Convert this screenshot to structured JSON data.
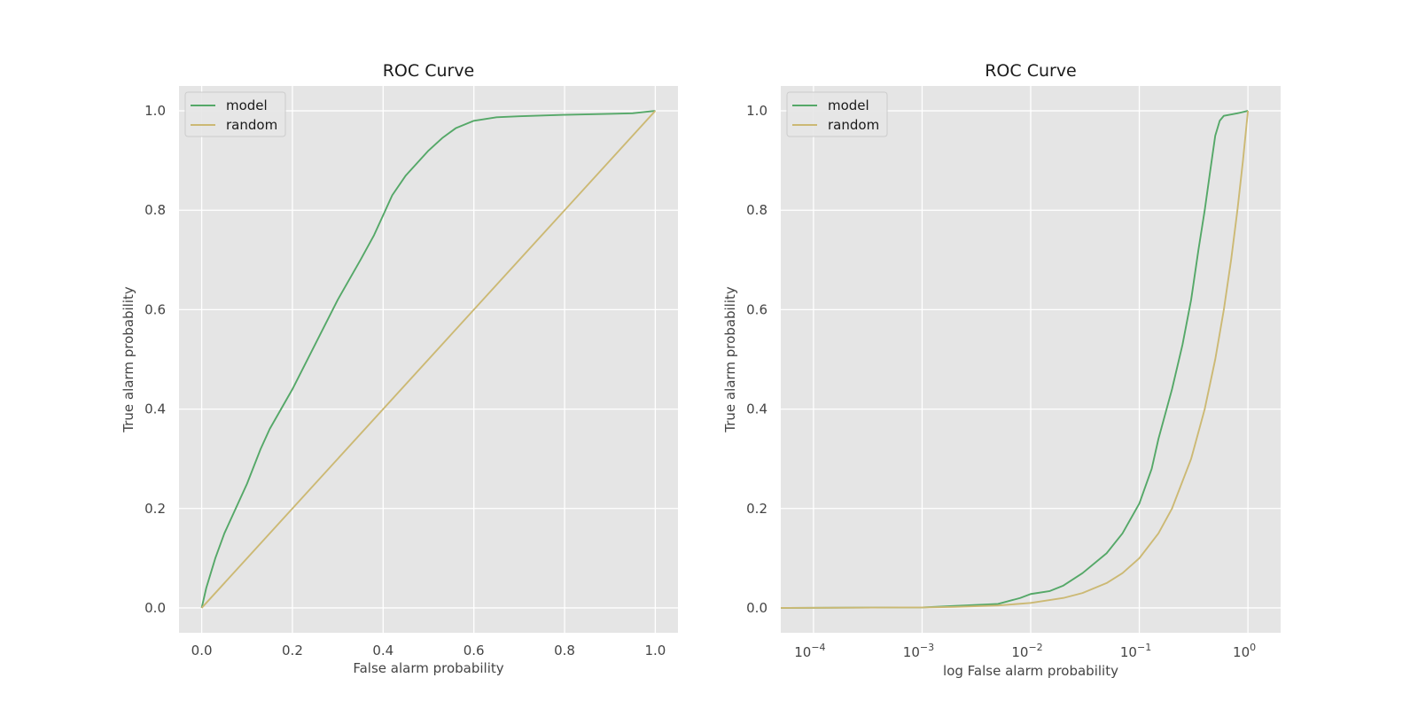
{
  "chart_data": [
    {
      "type": "line",
      "title": "ROC Curve",
      "xlabel": "False alarm probability",
      "ylabel": "True alarm probability",
      "xscale": "linear",
      "xlim": [
        -0.05,
        1.05
      ],
      "ylim": [
        -0.05,
        1.05
      ],
      "xticks": [
        0.0,
        0.2,
        0.4,
        0.6,
        0.8,
        1.0
      ],
      "xtick_labels": [
        "0.0",
        "0.2",
        "0.4",
        "0.6",
        "0.8",
        "1.0"
      ],
      "yticks": [
        0.0,
        0.2,
        0.4,
        0.6,
        0.8,
        1.0
      ],
      "ytick_labels": [
        "0.0",
        "0.2",
        "0.4",
        "0.6",
        "0.8",
        "1.0"
      ],
      "grid": true,
      "legend_position": "top-left",
      "series": [
        {
          "name": "model",
          "color": "#55a868",
          "x": [
            0.0,
            0.01,
            0.02,
            0.03,
            0.05,
            0.07,
            0.1,
            0.13,
            0.15,
            0.2,
            0.25,
            0.3,
            0.35,
            0.38,
            0.4,
            0.42,
            0.45,
            0.48,
            0.5,
            0.53,
            0.56,
            0.6,
            0.65,
            0.7,
            0.8,
            0.9,
            0.95,
            0.97,
            1.0
          ],
          "y": [
            0.0,
            0.04,
            0.07,
            0.1,
            0.15,
            0.19,
            0.25,
            0.32,
            0.36,
            0.44,
            0.53,
            0.62,
            0.7,
            0.75,
            0.79,
            0.83,
            0.87,
            0.9,
            0.92,
            0.945,
            0.965,
            0.98,
            0.987,
            0.989,
            0.992,
            0.994,
            0.995,
            0.997,
            1.0
          ]
        },
        {
          "name": "random",
          "color": "#ccb974",
          "x": [
            0.0,
            1.0
          ],
          "y": [
            0.0,
            1.0
          ]
        }
      ]
    },
    {
      "type": "line",
      "title": "ROC Curve",
      "xlabel": "log False alarm probability",
      "ylabel": "True alarm probability",
      "xscale": "log",
      "xlim": [
        5e-05,
        2.0
      ],
      "ylim": [
        -0.05,
        1.05
      ],
      "xticks": [
        0.0001,
        0.001,
        0.01,
        0.1,
        1.0
      ],
      "xtick_labels": [
        {
          "base": "10",
          "exp": "−4"
        },
        {
          "base": "10",
          "exp": "−3"
        },
        {
          "base": "10",
          "exp": "−2"
        },
        {
          "base": "10",
          "exp": "−1"
        },
        {
          "base": "10",
          "exp": "0"
        }
      ],
      "yticks": [
        0.0,
        0.2,
        0.4,
        0.6,
        0.8,
        1.0
      ],
      "ytick_labels": [
        "0.0",
        "0.2",
        "0.4",
        "0.6",
        "0.8",
        "1.0"
      ],
      "grid": true,
      "legend_position": "top-left",
      "series": [
        {
          "name": "model",
          "color": "#55a868",
          "x": [
            5e-05,
            0.001,
            0.002,
            0.005,
            0.008,
            0.01,
            0.015,
            0.02,
            0.03,
            0.05,
            0.07,
            0.1,
            0.13,
            0.15,
            0.2,
            0.25,
            0.3,
            0.35,
            0.4,
            0.45,
            0.5,
            0.55,
            0.6,
            0.8,
            1.0
          ],
          "y": [
            0.0,
            0.001,
            0.004,
            0.008,
            0.02,
            0.028,
            0.034,
            0.045,
            0.07,
            0.11,
            0.15,
            0.21,
            0.28,
            0.34,
            0.44,
            0.53,
            0.62,
            0.72,
            0.8,
            0.88,
            0.95,
            0.98,
            0.99,
            0.995,
            1.0
          ]
        },
        {
          "name": "random",
          "color": "#ccb974",
          "x": [
            5e-05,
            0.001,
            0.002,
            0.005,
            0.01,
            0.02,
            0.03,
            0.05,
            0.07,
            0.1,
            0.15,
            0.2,
            0.3,
            0.4,
            0.5,
            0.6,
            0.7,
            0.8,
            0.9,
            1.0
          ],
          "y": [
            5e-05,
            0.001,
            0.002,
            0.005,
            0.01,
            0.02,
            0.03,
            0.05,
            0.07,
            0.1,
            0.15,
            0.2,
            0.3,
            0.4,
            0.5,
            0.6,
            0.7,
            0.8,
            0.9,
            1.0
          ]
        }
      ]
    }
  ]
}
